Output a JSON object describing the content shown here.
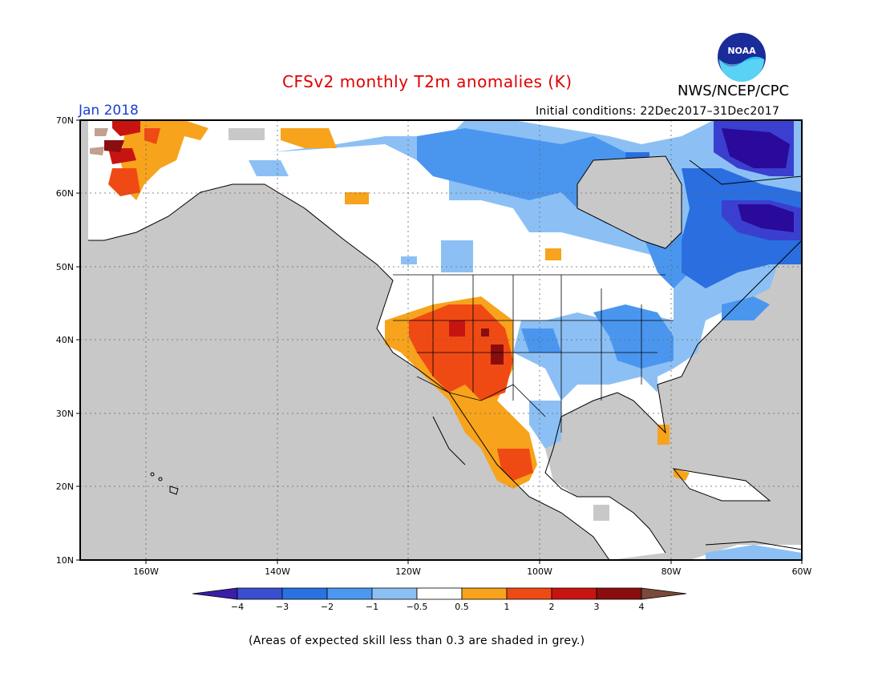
{
  "header": {
    "title": "CFSv2 monthly T2m anomalies (K)",
    "title_color": "#e00000",
    "org": "NWS/NCEP/CPC",
    "month": "Jan 2018",
    "month_color": "#1a40d0",
    "initial_conditions": "Initial conditions: 22Dec2017–31Dec2017"
  },
  "logo": {
    "icon": "noaa-logo-icon",
    "text": "NOAA"
  },
  "map": {
    "lat_labels": [
      "70N",
      "60N",
      "50N",
      "40N",
      "30N",
      "20N",
      "10N"
    ],
    "lon_labels": [
      "160W",
      "140W",
      "120W",
      "100W",
      "80W",
      "60W"
    ],
    "colors": {
      "grey_low_skill": "#c8c8c8",
      "neutral": "#ffffff",
      "neg_4": "#2a0a9a",
      "neg_3": "#3a3fd0",
      "neg_2": "#2a6ee0",
      "neg_1": "#4a96ef",
      "neg_05": "#8cc0f5",
      "pos_05": "#f7a31c",
      "pos_1": "#f04a14",
      "pos_2": "#c81410",
      "pos_3": "#8a0e0e",
      "pos_4": "#c0a090"
    }
  },
  "colorbar": {
    "ticks": [
      "−4",
      "−3",
      "−2",
      "−1",
      "−0.5",
      "0.5",
      "1",
      "2",
      "3",
      "4"
    ],
    "colors": [
      "#3a1ea8",
      "#3a4ed0",
      "#2a72e0",
      "#4a98ef",
      "#8cc0f5",
      "#ffffff",
      "#f7a31c",
      "#f04a14",
      "#c81410",
      "#8a0e0e",
      "#c0a090",
      "#7a4a3a"
    ]
  },
  "footnote": "(Areas of expected skill less than 0.3 are shaded in grey.)"
}
